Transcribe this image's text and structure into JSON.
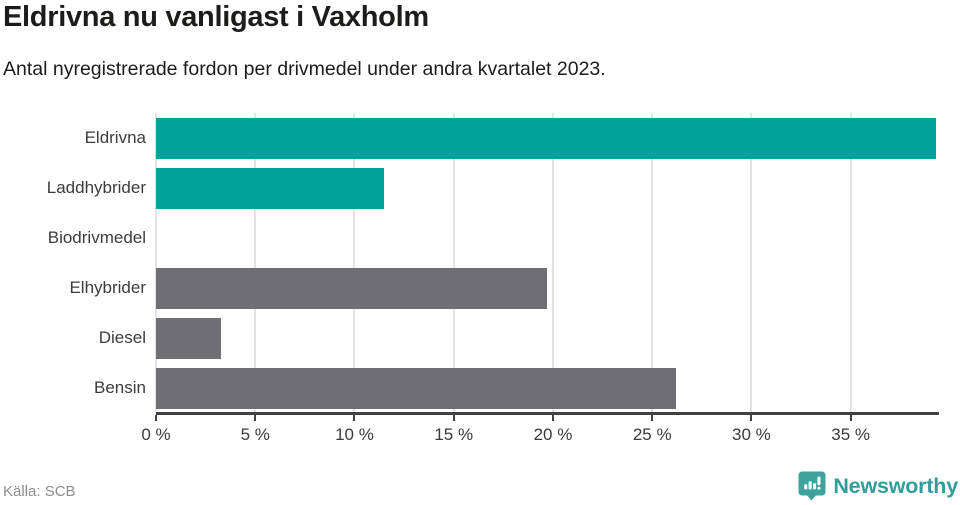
{
  "chart_data": {
    "type": "bar",
    "orientation": "horizontal",
    "title": "Eldrivna nu vanligast i Vaxholm",
    "subtitle": "Antal nyregistrerade fordon per drivmedel under andra kvartalet 2023.",
    "categories": [
      "Eldrivna",
      "Laddhybrider",
      "Biodrivmedel",
      "Elhybrider",
      "Diesel",
      "Bensin"
    ],
    "values": [
      39.3,
      11.5,
      0,
      19.7,
      3.3,
      26.2
    ],
    "unit": "%",
    "xlim": [
      0,
      39.4
    ],
    "xticks": [
      0,
      5,
      10,
      15,
      20,
      25,
      30,
      35
    ],
    "xtick_labels": [
      "0 %",
      "5 %",
      "10 %",
      "15 %",
      "20 %",
      "25 %",
      "30 %",
      "35 %"
    ],
    "bar_colors": [
      "#00a29a",
      "#00a29a",
      "#00a29a",
      "#6e6e74",
      "#6e6e74",
      "#6e6e74"
    ],
    "grid": "vertical",
    "legend": "none"
  },
  "colors": {
    "accent_teal": "#00a29a",
    "bar_gray": "#6e6e74",
    "brand_teal": "#2f9e9a",
    "gridline": "#e3e3e3",
    "axis": "#414141"
  },
  "footer": {
    "source": "Källa: SCB",
    "brand": "Newsworthy"
  }
}
